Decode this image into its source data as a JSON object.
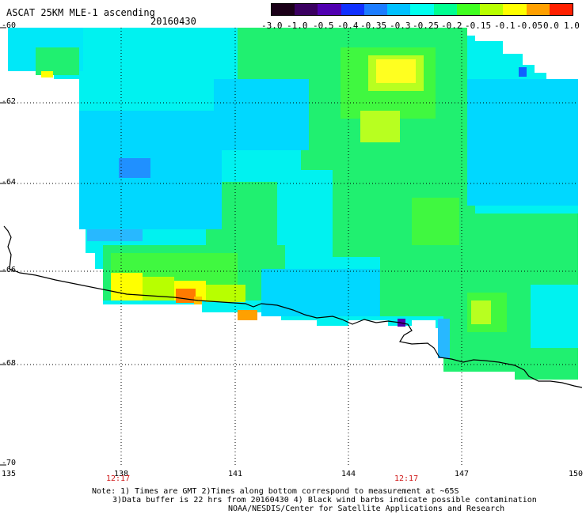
{
  "header": {
    "title": "ASCAT 25KM MLE-1 ascending",
    "date": "20160430"
  },
  "colorbar": {
    "labels": [
      "-3.0",
      "-1.0",
      "-0.5",
      "-0.4",
      "-0.35",
      "-0.3",
      "-0.25",
      "-0.2",
      "-0.15",
      "-0.1",
      "-0.05",
      "0.0",
      "1.0"
    ],
    "colors": [
      "#1a0018",
      "#3a0060",
      "#5000b0",
      "#1030ff",
      "#1c7cff",
      "#00c0ff",
      "#00ffee",
      "#00ff90",
      "#40ff20",
      "#b8ff00",
      "#ffff00",
      "#ffa000",
      "#ff2000"
    ]
  },
  "axes": {
    "lat_labels": [
      "-60",
      "-62",
      "-64",
      "-66",
      "-68",
      "-70"
    ],
    "lon_labels": [
      "135",
      "138",
      "141",
      "144",
      "147",
      "150"
    ]
  },
  "times": {
    "left": "12:17",
    "right": "12:17"
  },
  "notes": {
    "line1": "Note: 1) Times are GMT 2)Times along bottom correspond to measurement at ~65S",
    "line2": "3)Data buffer is 22 hrs from 20160430 4) Black wind barbs indicate possible contamination",
    "line3": "NOAA/NESDIS/Center for Satellite Applications and Research"
  }
}
